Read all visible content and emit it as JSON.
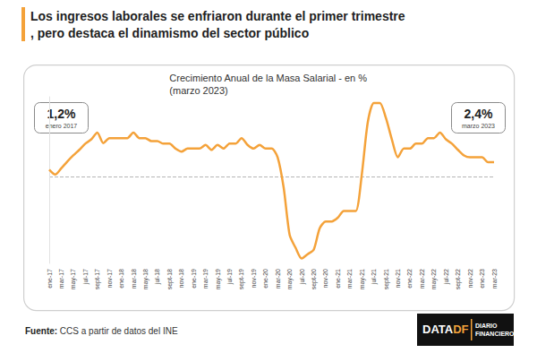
{
  "chart_data": {
    "type": "line",
    "title": "Los ingresos laborales se enfriaron durante el primer trimestre, pero destaca el dinamismo del sector público",
    "subtitle": [
      "Crecimiento Anual de la Masa Salarial - en %",
      "(marzo 2023)"
    ],
    "annotations": [
      {
        "label": "1,2%",
        "note": "enero 2017"
      },
      {
        "label": "2,4%",
        "note": "marzo 2023"
      }
    ],
    "source": "Fuente: CCS a partir de datos del INE",
    "logo": {
      "brand": [
        "DATA",
        "DF"
      ],
      "name": [
        "DIARIO",
        "FINANCIERO"
      ]
    },
    "categories": [
      "ene-17",
      null,
      "mar-17",
      null,
      "may-17",
      null,
      "jul-17",
      null,
      "sept-17",
      null,
      "nov-17",
      null,
      "ene-18",
      null,
      "mar-18",
      null,
      "may-18",
      null,
      "jul-18",
      null,
      "sept-18",
      null,
      "nov-18",
      null,
      "ene-19",
      null,
      "mar-19",
      null,
      "may-19",
      null,
      "jul-19",
      null,
      "sept-19",
      null,
      "nov-19",
      null,
      "ene-20",
      null,
      "mar-20",
      null,
      "may-20",
      null,
      "jul-20",
      null,
      "sept-20",
      null,
      "nov-20",
      null,
      "ene-21",
      null,
      "mar-21",
      null,
      "may-21",
      null,
      "jul-21",
      null,
      "sept-21",
      null,
      "nov-21",
      null,
      "ene-22",
      null,
      "mar-22",
      null,
      "may-22",
      null,
      "jul-22",
      null,
      "sept-22",
      null,
      "nov-22",
      null,
      "ene-23",
      null,
      "mar-23"
    ],
    "values": [
      1.2,
      0.4,
      1.4,
      2.5,
      3.5,
      4.4,
      5.4,
      6.1,
      7.2,
      5.5,
      6.3,
      6.3,
      6.3,
      6.3,
      7.2,
      6.3,
      6.3,
      5.8,
      5.8,
      5.4,
      5.4,
      4.6,
      4.1,
      4.6,
      4.6,
      4.6,
      5.2,
      4.4,
      5.2,
      4.6,
      5.4,
      5.4,
      6.3,
      5.2,
      4.6,
      5.2,
      4.6,
      4.6,
      3.2,
      -1.7,
      -9.4,
      -11.5,
      -13.2,
      -12.5,
      -11.8,
      -8.3,
      -7.2,
      -7.2,
      -6.6,
      -5.5,
      -5.5,
      -5.5,
      0.4,
      8.9,
      12.0,
      12.0,
      9.6,
      6.1,
      3.2,
      4.6,
      4.6,
      5.4,
      5.4,
      6.3,
      6.3,
      7.2,
      6.1,
      5.4,
      4.4,
      3.5,
      3.2,
      3.2,
      3.2,
      2.4,
      2.4
    ],
    "color": "#f4a23a",
    "ylim": [
      -14,
      13
    ],
    "yticks": [
      0
    ],
    "grid": true,
    "tick_labels": "x"
  }
}
